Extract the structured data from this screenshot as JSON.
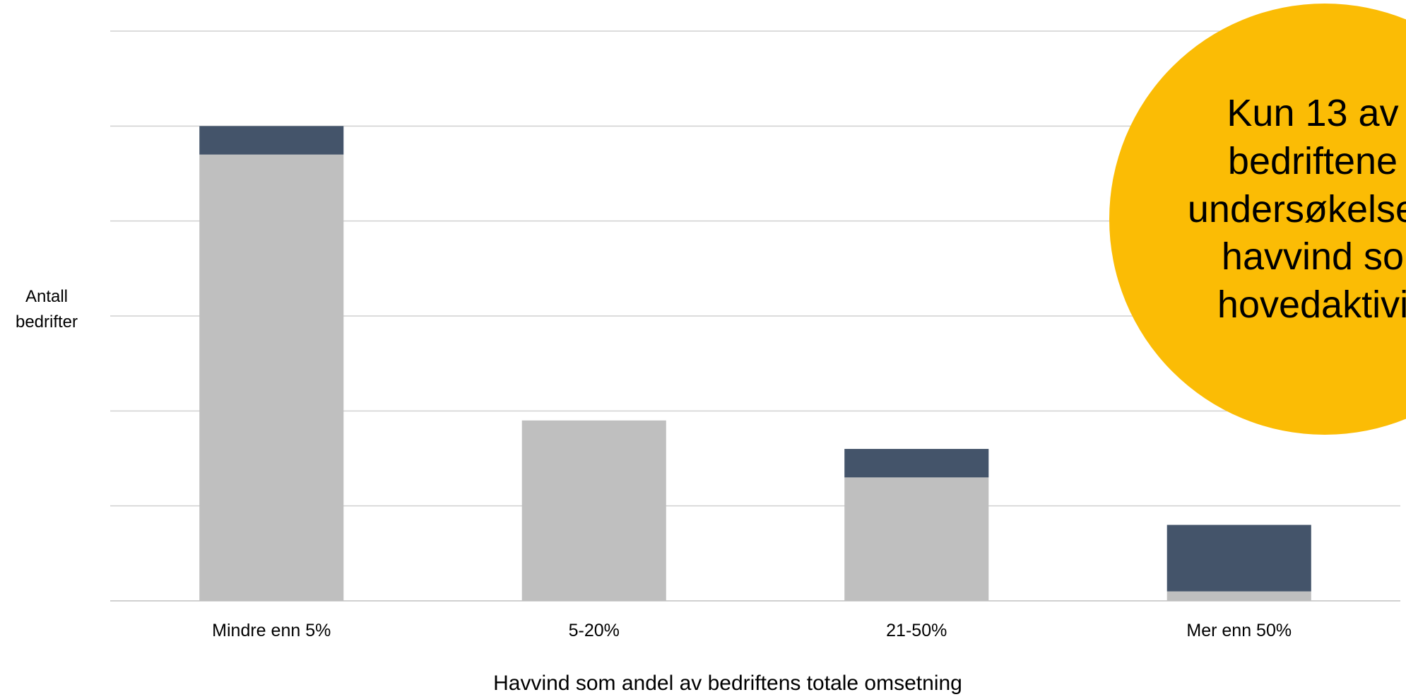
{
  "chart_data": {
    "type": "bar",
    "stacked": true,
    "categories": [
      "Mindre enn 5%",
      "5-20%",
      "21-50%",
      "Mer enn 50%"
    ],
    "series": [
      {
        "values": [
          47,
          19,
          13,
          1
        ],
        "color": "#bfbfbf"
      },
      {
        "values": [
          3,
          0,
          3,
          7
        ],
        "color": "#44546a"
      }
    ],
    "ylim": [
      0,
      60
    ],
    "y_gridline_step": 10,
    "y_tick_labels_visible": false,
    "grid": true,
    "xlabel": "Havvind som andel av bedriftens totale omsetning",
    "ylabel_lines": [
      "Antall",
      "bedrifter"
    ],
    "callout": {
      "lines": [
        "Kun 13 av",
        "bedriftene",
        "undersøkelsen",
        "havvind so",
        "hovedaktivi"
      ],
      "color": "#fbbc05"
    }
  }
}
